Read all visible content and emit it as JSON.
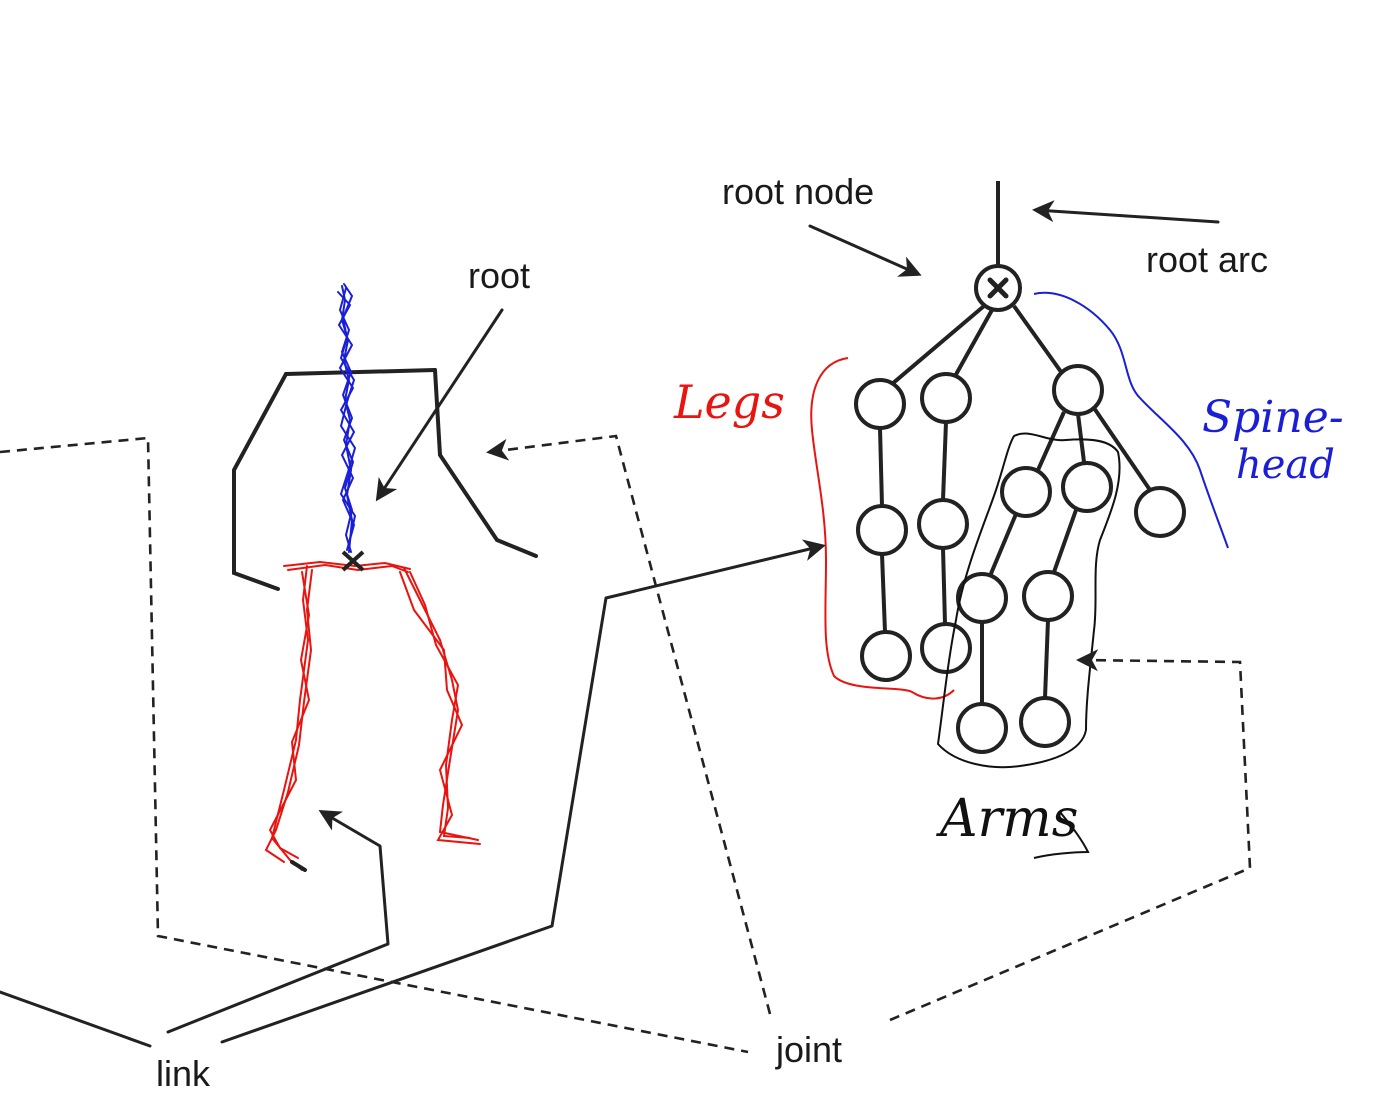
{
  "labels": {
    "root_node": "root node",
    "root_arc": "root arc",
    "root": "root",
    "link": "link",
    "joint": "joint"
  },
  "annotations": {
    "legs": "Legs",
    "spine_head": "Spine-",
    "spine_head_2": "head",
    "arms": "Arms"
  },
  "colors": {
    "legs": "#e8140f",
    "spine": "#1a1fd6",
    "arms": "#111111",
    "ink": "#222222"
  }
}
